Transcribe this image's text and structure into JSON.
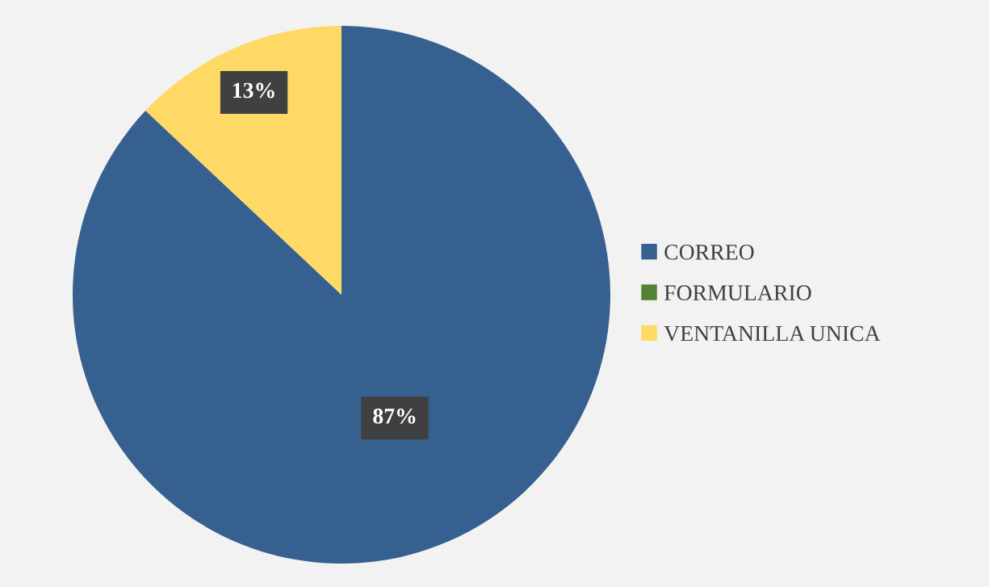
{
  "chart_data": {
    "type": "pie",
    "categories": [
      "CORREO",
      "FORMULARIO",
      "VENTANILLA UNICA"
    ],
    "values": [
      87,
      0,
      13
    ],
    "colors": [
      "#36608f",
      "#548235",
      "#ffd966"
    ],
    "value_labels": [
      "87%",
      null,
      "13%"
    ],
    "legend": "right"
  }
}
